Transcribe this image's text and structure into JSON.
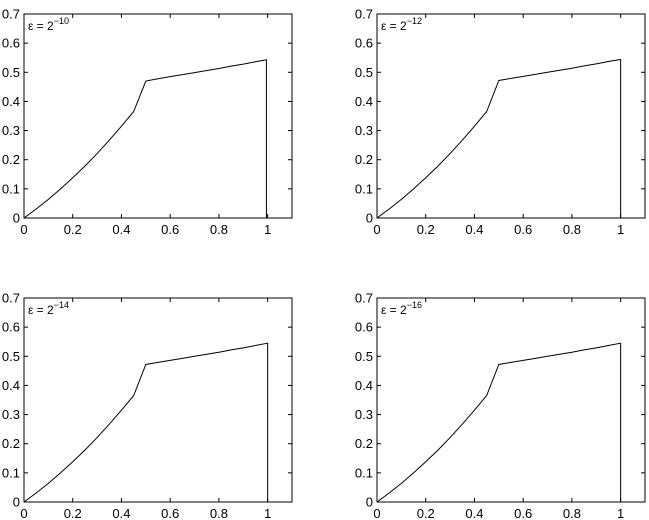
{
  "chart_data": [
    {
      "type": "line",
      "annotation": {
        "base": "ε = 2",
        "exponent": "−10"
      },
      "xlim": [
        0,
        1.1
      ],
      "ylim": [
        0,
        0.7
      ],
      "xticks": [
        "0",
        "0.2",
        "0.4",
        "0.6",
        "0.8",
        "1"
      ],
      "yticks": [
        "0",
        "0.1",
        "0.2",
        "0.3",
        "0.4",
        "0.5",
        "0.6",
        "0.7"
      ],
      "grid": false,
      "series": [
        {
          "color": "#000000",
          "x": [
            0,
            0.05,
            0.1,
            0.15,
            0.2,
            0.25,
            0.3,
            0.35,
            0.4,
            0.45,
            0.5,
            0.55,
            0.6,
            0.65,
            0.7,
            0.75,
            0.8,
            0.85,
            0.9,
            0.95,
            0.99,
            0.995,
            0.995
          ],
          "y": [
            0,
            0.031,
            0.064,
            0.1,
            0.138,
            0.178,
            0.221,
            0.267,
            0.315,
            0.365,
            0.47,
            0.478,
            0.485,
            0.492,
            0.499,
            0.506,
            0.513,
            0.521,
            0.528,
            0.536,
            0.542,
            0.543,
            0
          ]
        }
      ]
    },
    {
      "type": "line",
      "annotation": {
        "base": "ε = 2",
        "exponent": "−12"
      },
      "xlim": [
        0,
        1.1
      ],
      "ylim": [
        0,
        0.7
      ],
      "xticks": [
        "0",
        "0.2",
        "0.4",
        "0.6",
        "0.8",
        "1"
      ],
      "yticks": [
        "0",
        "0.1",
        "0.2",
        "0.3",
        "0.4",
        "0.5",
        "0.6",
        "0.7"
      ],
      "grid": false,
      "series": [
        {
          "color": "#000000",
          "x": [
            0,
            0.05,
            0.1,
            0.15,
            0.2,
            0.25,
            0.3,
            0.35,
            0.4,
            0.45,
            0.5,
            0.55,
            0.6,
            0.65,
            0.7,
            0.75,
            0.8,
            0.85,
            0.9,
            0.95,
            1.0,
            1.0
          ],
          "y": [
            0,
            0.031,
            0.064,
            0.1,
            0.138,
            0.178,
            0.221,
            0.267,
            0.315,
            0.365,
            0.472,
            0.479,
            0.486,
            0.493,
            0.5,
            0.507,
            0.514,
            0.522,
            0.529,
            0.537,
            0.544,
            0
          ]
        }
      ]
    },
    {
      "type": "line",
      "annotation": {
        "base": "ε = 2",
        "exponent": "−14"
      },
      "xlim": [
        0,
        1.1
      ],
      "ylim": [
        0,
        0.7
      ],
      "xticks": [
        "0",
        "0.2",
        "0.4",
        "0.6",
        "0.8",
        "1"
      ],
      "yticks": [
        "0",
        "0.1",
        "0.2",
        "0.3",
        "0.4",
        "0.5",
        "0.6",
        "0.7"
      ],
      "grid": false,
      "series": [
        {
          "color": "#000000",
          "x": [
            0,
            0.05,
            0.1,
            0.15,
            0.2,
            0.25,
            0.3,
            0.35,
            0.4,
            0.45,
            0.5,
            0.55,
            0.6,
            0.65,
            0.7,
            0.75,
            0.8,
            0.85,
            0.9,
            0.95,
            1.0,
            1.0
          ],
          "y": [
            0,
            0.031,
            0.064,
            0.1,
            0.138,
            0.178,
            0.221,
            0.267,
            0.315,
            0.365,
            0.472,
            0.479,
            0.486,
            0.493,
            0.5,
            0.507,
            0.514,
            0.522,
            0.529,
            0.537,
            0.545,
            0
          ]
        }
      ]
    },
    {
      "type": "line",
      "annotation": {
        "base": "ε = 2",
        "exponent": "−16"
      },
      "xlim": [
        0,
        1.1
      ],
      "ylim": [
        0,
        0.7
      ],
      "xticks": [
        "0",
        "0.2",
        "0.4",
        "0.6",
        "0.8",
        "1"
      ],
      "yticks": [
        "0",
        "0.1",
        "0.2",
        "0.3",
        "0.4",
        "0.5",
        "0.6",
        "0.7"
      ],
      "grid": false,
      "series": [
        {
          "color": "#000000",
          "x": [
            0,
            0.05,
            0.1,
            0.15,
            0.2,
            0.25,
            0.3,
            0.35,
            0.4,
            0.45,
            0.5,
            0.55,
            0.6,
            0.65,
            0.7,
            0.75,
            0.8,
            0.85,
            0.9,
            0.95,
            1.0,
            1.0
          ],
          "y": [
            0,
            0.031,
            0.064,
            0.1,
            0.138,
            0.178,
            0.221,
            0.267,
            0.315,
            0.365,
            0.472,
            0.479,
            0.486,
            0.493,
            0.5,
            0.507,
            0.514,
            0.522,
            0.529,
            0.537,
            0.545,
            0
          ]
        }
      ]
    }
  ]
}
